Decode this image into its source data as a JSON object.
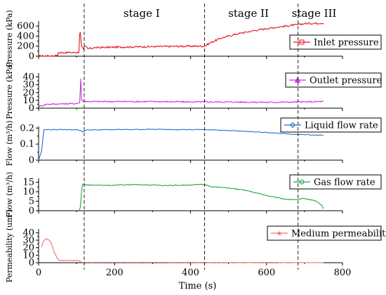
{
  "chart_data": {
    "type": "line",
    "xlabel": "Time (s)",
    "xlim": [
      0,
      800
    ],
    "x_ticks": [
      0,
      200,
      400,
      600,
      800
    ],
    "x_tick_labels": [
      "0",
      "200",
      "400",
      "600",
      "800"
    ],
    "stage_boundaries": [
      120,
      437,
      683
    ],
    "stage_labels": [
      "stage I",
      "stage II",
      "stage III"
    ],
    "panels": [
      {
        "id": "inlet",
        "ylabel": "Pressure (kPa)",
        "ylim": [
          0,
          700
        ],
        "yticks": [
          0,
          200,
          400,
          600
        ],
        "legend": "Inlet pressure",
        "color": "#e8141c",
        "marker": "square",
        "series": {
          "x": [
            0,
            50,
            52,
            106,
            108,
            110,
            113,
            118,
            122,
            130,
            150,
            200,
            250,
            300,
            350,
            400,
            437,
            450,
            480,
            520,
            560,
            600,
            640,
            683,
            700,
            750
          ],
          "y": [
            0,
            10,
            70,
            75,
            440,
            480,
            200,
            140,
            200,
            150,
            170,
            180,
            185,
            190,
            195,
            200,
            200,
            260,
            360,
            440,
            500,
            550,
            590,
            630,
            650,
            660
          ]
        }
      },
      {
        "id": "outlet",
        "ylabel": "Pressure (kPa)",
        "ylim": [
          0,
          45
        ],
        "yticks": [
          0,
          10,
          20,
          30,
          40
        ],
        "legend": "Outlet pressure",
        "color": "#cc33dd",
        "marker": "triangle",
        "series": {
          "x": [
            0,
            10,
            20,
            100,
            108,
            111,
            113,
            117,
            130,
            200,
            300,
            400,
            500,
            600,
            700,
            750
          ],
          "y": [
            3,
            3,
            5,
            6,
            7,
            38,
            10,
            9,
            8.5,
            8.5,
            8.5,
            8,
            8,
            7.5,
            8,
            8.5
          ]
        }
      },
      {
        "id": "liquid",
        "ylabel": "Flow (m³/h)",
        "ylim": [
          0,
          0.21
        ],
        "yticks": [
          0,
          0.1,
          0.2
        ],
        "legend": "Liquid flow rate",
        "color": "#1f6fd0",
        "marker": "diamond",
        "series": {
          "x": [
            0,
            8,
            14,
            20,
            100,
            110,
            116,
            125,
            200,
            300,
            400,
            437,
            500,
            600,
            683,
            750
          ],
          "y": [
            0,
            0.06,
            0.19,
            0.19,
            0.19,
            0.185,
            0.175,
            0.188,
            0.19,
            0.192,
            0.19,
            0.19,
            0.185,
            0.172,
            0.16,
            0.155
          ]
        }
      },
      {
        "id": "gas",
        "ylabel": "Flow (m³/h)",
        "ylim": [
          0,
          17
        ],
        "yticks": [
          0,
          5,
          10,
          15
        ],
        "legend": "Gas flow rate",
        "color": "#22a34a",
        "marker": "circle",
        "series": {
          "x": [
            107,
            110,
            113,
            116,
            130,
            200,
            250,
            300,
            350,
            400,
            437,
            460,
            500,
            550,
            600,
            650,
            683,
            700,
            730,
            745,
            750
          ],
          "y": [
            0,
            2,
            10,
            14,
            13.5,
            13.4,
            13.8,
            13.5,
            13.3,
            13.6,
            13.8,
            12.5,
            12,
            10.5,
            8,
            6,
            6,
            6.5,
            5,
            3,
            1
          ]
        }
      },
      {
        "id": "perm",
        "ylabel": "Permeability (um²)",
        "ylim": [
          0,
          45
        ],
        "yticks": [
          0,
          10,
          20,
          30,
          40
        ],
        "legend": "Medium permeability",
        "color": "#f07070",
        "marker": "star",
        "series": {
          "x": [
            8,
            10,
            15,
            20,
            25,
            30,
            35,
            40,
            50,
            55,
            100,
            110,
            112,
            120,
            200,
            300,
            400,
            500,
            600,
            700,
            750
          ],
          "y": [
            21,
            25,
            30,
            32,
            31,
            29,
            24,
            15,
            5,
            3,
            3,
            2,
            0.5,
            0.5,
            0.5,
            0.4,
            0.3,
            0.2,
            0.2,
            0.1,
            0.1
          ]
        }
      }
    ]
  }
}
